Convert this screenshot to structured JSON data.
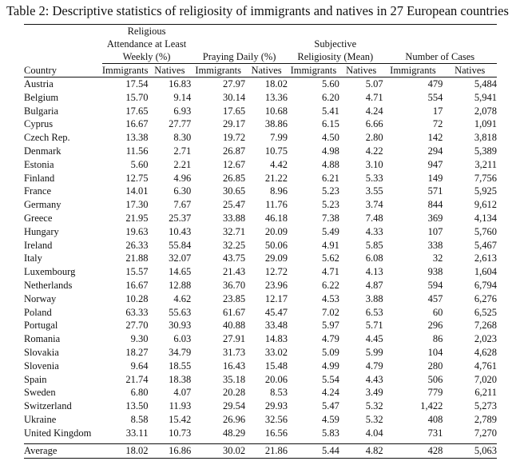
{
  "caption": "Table 2: Descriptive statistics of religiosity of immigrants and natives in 27 European countries",
  "header": {
    "country_label": "Country",
    "groups": [
      {
        "lines": [
          "Religious",
          "Attendance at Least",
          "Weekly (%)"
        ]
      },
      {
        "lines": [
          "",
          "",
          "Praying Daily (%)"
        ]
      },
      {
        "lines": [
          "",
          "Subjective",
          "Religiosity (Mean)"
        ]
      },
      {
        "lines": [
          "",
          "",
          "Number of Cases"
        ]
      }
    ],
    "sub_labels": [
      "Immigrants",
      "Natives",
      "Immigrants",
      "Natives",
      "Immigrants",
      "Natives",
      "Immigrants",
      "Natives"
    ]
  },
  "rows": [
    {
      "country": "Austria",
      "values": [
        "17.54",
        "16.83",
        "27.97",
        "18.02",
        "5.60",
        "5.07",
        "479",
        "5,484"
      ]
    },
    {
      "country": "Belgium",
      "values": [
        "15.70",
        "9.14",
        "30.14",
        "13.36",
        "6.20",
        "4.71",
        "554",
        "5,941"
      ]
    },
    {
      "country": "Bulgaria",
      "values": [
        "17.65",
        "6.93",
        "17.65",
        "10.68",
        "5.41",
        "4.24",
        "17",
        "2,078"
      ]
    },
    {
      "country": "Cyprus",
      "values": [
        "16.67",
        "27.77",
        "29.17",
        "38.86",
        "6.15",
        "6.66",
        "72",
        "1,091"
      ]
    },
    {
      "country": "Czech Rep.",
      "values": [
        "13.38",
        "8.30",
        "19.72",
        "7.99",
        "4.50",
        "2.80",
        "142",
        "3,818"
      ]
    },
    {
      "country": "Denmark",
      "values": [
        "11.56",
        "2.71",
        "26.87",
        "10.75",
        "4.98",
        "4.22",
        "294",
        "5,389"
      ]
    },
    {
      "country": "Estonia",
      "values": [
        "5.60",
        "2.21",
        "12.67",
        "4.42",
        "4.88",
        "3.10",
        "947",
        "3,211"
      ]
    },
    {
      "country": "Finland",
      "values": [
        "12.75",
        "4.96",
        "26.85",
        "21.22",
        "6.21",
        "5.33",
        "149",
        "7,756"
      ]
    },
    {
      "country": "France",
      "values": [
        "14.01",
        "6.30",
        "30.65",
        "8.96",
        "5.23",
        "3.55",
        "571",
        "5,925"
      ]
    },
    {
      "country": "Germany",
      "values": [
        "17.30",
        "7.67",
        "25.47",
        "11.76",
        "5.23",
        "3.74",
        "844",
        "9,612"
      ]
    },
    {
      "country": "Greece",
      "values": [
        "21.95",
        "25.37",
        "33.88",
        "46.18",
        "7.38",
        "7.48",
        "369",
        "4,134"
      ]
    },
    {
      "country": "Hungary",
      "values": [
        "19.63",
        "10.43",
        "32.71",
        "20.09",
        "5.49",
        "4.33",
        "107",
        "5,760"
      ]
    },
    {
      "country": "Ireland",
      "values": [
        "26.33",
        "55.84",
        "32.25",
        "50.06",
        "4.91",
        "5.85",
        "338",
        "5,467"
      ]
    },
    {
      "country": "Italy",
      "values": [
        "21.88",
        "32.07",
        "43.75",
        "29.09",
        "5.62",
        "6.08",
        "32",
        "2,613"
      ]
    },
    {
      "country": "Luxembourg",
      "values": [
        "15.57",
        "14.65",
        "21.43",
        "12.72",
        "4.71",
        "4.13",
        "938",
        "1,604"
      ]
    },
    {
      "country": "Netherlands",
      "values": [
        "16.67",
        "12.88",
        "36.70",
        "23.96",
        "6.22",
        "4.87",
        "594",
        "6,794"
      ]
    },
    {
      "country": "Norway",
      "values": [
        "10.28",
        "4.62",
        "23.85",
        "12.17",
        "4.53",
        "3.88",
        "457",
        "6,276"
      ]
    },
    {
      "country": "Poland",
      "values": [
        "63.33",
        "55.63",
        "61.67",
        "45.47",
        "7.02",
        "6.53",
        "60",
        "6,525"
      ]
    },
    {
      "country": "Portugal",
      "values": [
        "27.70",
        "30.93",
        "40.88",
        "33.48",
        "5.97",
        "5.71",
        "296",
        "7,268"
      ]
    },
    {
      "country": "Romania",
      "values": [
        "9.30",
        "6.03",
        "27.91",
        "14.83",
        "4.79",
        "4.45",
        "86",
        "2,023"
      ]
    },
    {
      "country": "Slovakia",
      "values": [
        "18.27",
        "34.79",
        "31.73",
        "33.02",
        "5.09",
        "5.99",
        "104",
        "4,628"
      ]
    },
    {
      "country": "Slovenia",
      "values": [
        "9.64",
        "18.55",
        "16.43",
        "15.48",
        "4.99",
        "4.79",
        "280",
        "4,761"
      ]
    },
    {
      "country": "Spain",
      "values": [
        "21.74",
        "18.38",
        "35.18",
        "20.06",
        "5.54",
        "4.43",
        "506",
        "7,020"
      ]
    },
    {
      "country": "Sweden",
      "values": [
        "6.80",
        "4.07",
        "20.28",
        "8.53",
        "4.24",
        "3.49",
        "779",
        "6,211"
      ]
    },
    {
      "country": "Switzerland",
      "values": [
        "13.50",
        "11.93",
        "29.54",
        "29.93",
        "5.47",
        "5.32",
        "1,422",
        "5,273"
      ]
    },
    {
      "country": "Ukraine",
      "values": [
        "8.58",
        "15.42",
        "26.96",
        "32.56",
        "4.59",
        "5.32",
        "408",
        "2,789"
      ]
    },
    {
      "country": "United Kingdom",
      "values": [
        "33.11",
        "10.73",
        "48.29",
        "16.56",
        "5.83",
        "4.04",
        "731",
        "7,270"
      ]
    }
  ],
  "average": {
    "country": "Average",
    "values": [
      "18.02",
      "16.86",
      "30.02",
      "21.86",
      "5.44",
      "4.82",
      "428",
      "5,063"
    ]
  }
}
